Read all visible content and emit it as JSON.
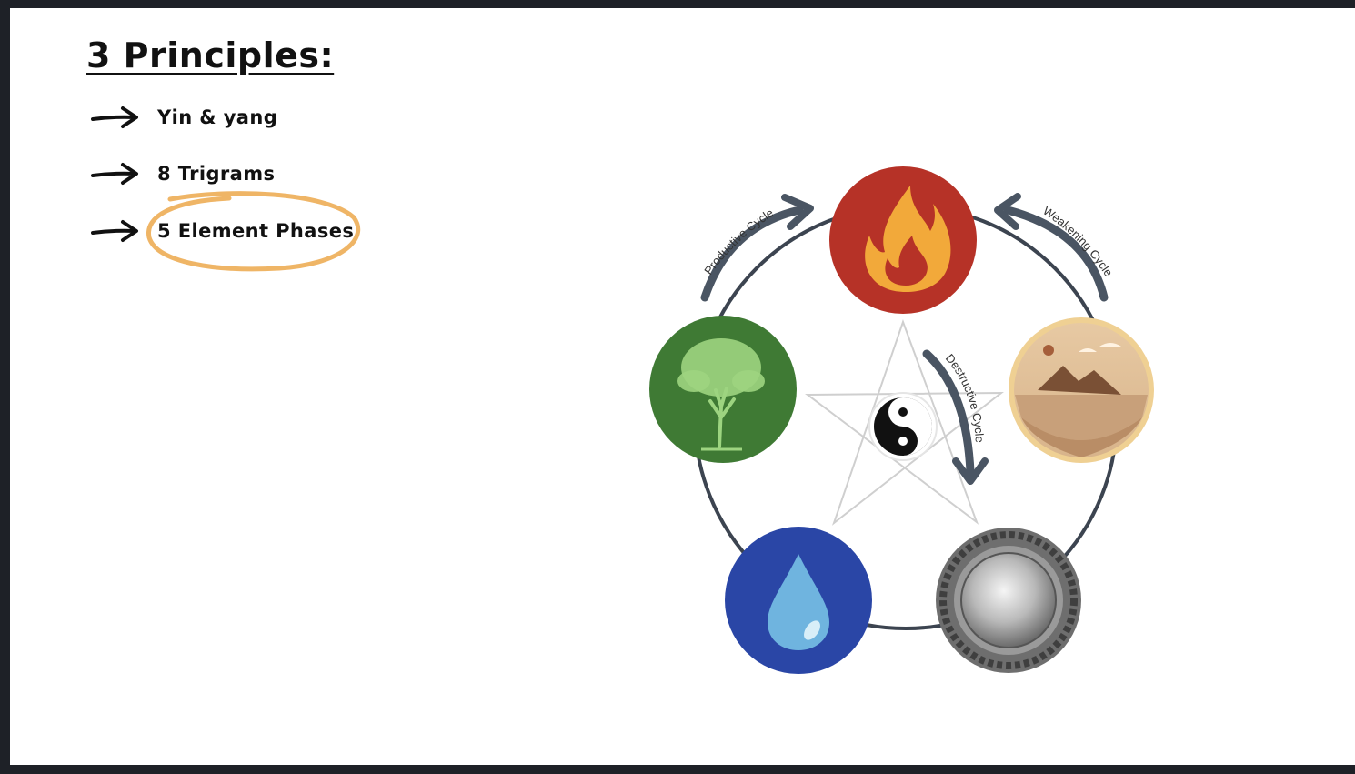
{
  "slide": {
    "title": "3 Principles:",
    "items": [
      {
        "label": "Yin & yang"
      },
      {
        "label": "8 Trigrams"
      },
      {
        "label": "5 Element Phases",
        "highlighted": true
      }
    ]
  },
  "diagram": {
    "cycles": {
      "productive": "Productive Cycle",
      "weakening": "Weakening Cycle",
      "destructive": "Destructive Cycle"
    },
    "elements": [
      {
        "icon": "fire-icon",
        "color": "#b63227"
      },
      {
        "icon": "earth-icon",
        "color": "#e2c49a"
      },
      {
        "icon": "metal-icon",
        "color": "#6e6e6e"
      },
      {
        "icon": "water-icon",
        "color": "#2a46a6"
      },
      {
        "icon": "wood-icon",
        "color": "#3f7a34"
      }
    ],
    "center_icon": "yin-yang-icon",
    "colors": {
      "highlight": "#efb566",
      "arrow": "#4a5563",
      "ring": "#3c4450"
    }
  }
}
